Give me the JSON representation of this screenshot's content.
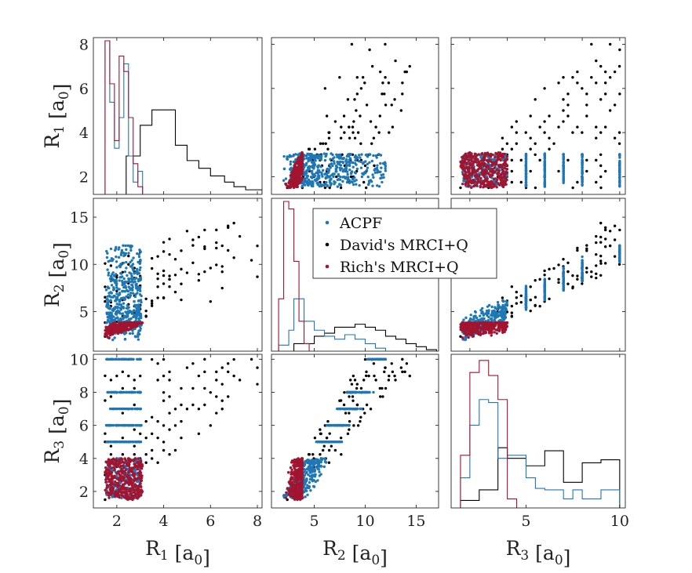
{
  "chart_data": {
    "type": "scatter",
    "layout": "3x3 scatter-plot matrix with histograms on the diagonal",
    "variables": [
      {
        "id": "R1",
        "label_main": "R",
        "label_sub": "1",
        "unit_main": "[a",
        "unit_sub": "0",
        "unit_end": "]",
        "xlim": [
          1.0,
          8.2
        ],
        "ylim": [
          1.2,
          8.3
        ],
        "ticks": [
          2,
          4,
          6,
          8
        ]
      },
      {
        "id": "R2",
        "label_main": "R",
        "label_sub": "2",
        "unit_main": "[a",
        "unit_sub": "0",
        "unit_end": "]",
        "xlim": [
          0.8,
          17.2
        ],
        "ylim": [
          0.8,
          17.0
        ],
        "ticks": [
          5,
          10,
          15
        ]
      },
      {
        "id": "R3",
        "label_main": "R",
        "label_sub": "3",
        "unit_main": "[a",
        "unit_sub": "0",
        "unit_end": "]",
        "xlim": [
          1.0,
          10.3
        ],
        "ylim": [
          1.0,
          10.3
        ],
        "ticks": [
          2,
          4,
          6,
          8,
          10
        ],
        "xticks_bottom": [
          5,
          10
        ]
      }
    ],
    "series": [
      {
        "name": "ACPF",
        "color": "#1f77b4"
      },
      {
        "name": "David's MRCI+Q",
        "color": "#000000"
      },
      {
        "name": "Rich's MRCI+Q",
        "color": "#a2142f"
      }
    ],
    "legend": {
      "position": "center",
      "entries": [
        "ACPF",
        "David's MRCI+Q",
        "Rich's MRCI+Q"
      ]
    },
    "histograms": {
      "R1": {
        "David's MRCI+Q": {
          "edges": [
            2.4,
            3.0,
            3.5,
            4.5,
            5.0,
            5.5,
            6.0,
            6.6,
            7.0,
            7.5,
            8.2
          ],
          "values": [
            0.25,
            0.45,
            0.55,
            0.32,
            0.22,
            0.17,
            0.12,
            0.08,
            0.05,
            0.03
          ]
        },
        "ACPF": {
          "edges": [
            1.5,
            1.7,
            1.9,
            2.1,
            2.3,
            2.5,
            2.7,
            2.9,
            3.1
          ],
          "values": [
            1.0,
            0.6,
            0.3,
            0.5,
            0.85,
            0.25,
            0.08,
            0.15
          ]
        },
        "Rich's MRCI+Q": {
          "edges": [
            1.5,
            1.7,
            1.9,
            2.1,
            2.3,
            2.5,
            2.7,
            2.9,
            3.1
          ],
          "values": [
            1.0,
            0.72,
            0.35,
            0.9,
            0.8,
            0.5,
            0.2,
            0.05
          ]
        }
      },
      "R2": {
        "David's MRCI+Q": {
          "edges": [
            3.0,
            5.0,
            6.0,
            7.0,
            9.0,
            10.0,
            11.0,
            12.0,
            13.0,
            14.0,
            15.0,
            16.0,
            17.0
          ],
          "values": [
            0.05,
            0.1,
            0.12,
            0.16,
            0.18,
            0.16,
            0.14,
            0.1,
            0.08,
            0.05,
            0.03,
            0.01
          ]
        },
        "ACPF": {
          "edges": [
            1.5,
            2.5,
            3.0,
            4.0,
            5.0,
            6.0,
            7.0,
            8.0,
            9.0,
            10.0,
            11.0,
            12.0
          ],
          "values": [
            0.04,
            0.14,
            0.35,
            0.2,
            0.14,
            0.1,
            0.08,
            0.11,
            0.08,
            0.05,
            0.02
          ]
        },
        "Rich's MRCI+Q": {
          "edges": [
            1.5,
            2.0,
            2.5,
            3.0,
            3.5,
            4.0,
            4.5
          ],
          "values": [
            0.35,
            1.0,
            0.95,
            0.6,
            0.2,
            0.05
          ]
        }
      },
      "R3": {
        "David's MRCI+Q": {
          "edges": [
            1.5,
            2.5,
            3.5,
            4.0,
            5.0,
            6.0,
            7.0,
            8.0,
            9.0,
            10.0
          ],
          "values": [
            0.05,
            0.12,
            0.4,
            0.33,
            0.28,
            0.38,
            0.17,
            0.3,
            0.32
          ]
        },
        "ACPF": {
          "edges": [
            1.5,
            2.0,
            2.5,
            3.0,
            3.5,
            4.0,
            5.0,
            5.5,
            6.0,
            7.0,
            7.5,
            8.0,
            9.0,
            10.0
          ],
          "values": [
            0.2,
            0.55,
            0.72,
            0.7,
            0.33,
            0.35,
            0.2,
            0.13,
            0.12,
            0.06,
            0.12,
            0.06,
            0.12
          ]
        },
        "Rich's MRCI+Q": {
          "edges": [
            1.5,
            2.0,
            2.5,
            3.0,
            3.5,
            4.0,
            4.5
          ],
          "values": [
            0.35,
            0.9,
            0.98,
            0.88,
            0.72,
            0.06
          ]
        }
      }
    }
  }
}
